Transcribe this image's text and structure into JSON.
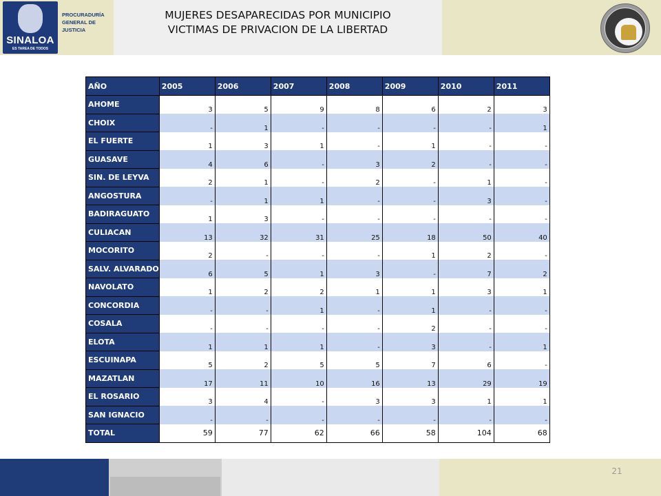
{
  "header": {
    "logo_text": "SINALOA",
    "logo_motto": "ES TAREA DE TODOS",
    "agency_lines": [
      "PROCURADURÍA",
      "GENERAL DE",
      "JUSTICIA"
    ],
    "title_line1": "MUJERES DESAPARECIDAS POR MUNICIPIO",
    "title_line2": "VICTIMAS DE PRIVACION DE LA LIBERTAD"
  },
  "table": {
    "headers": [
      "AÑO",
      "2005",
      "2006",
      "2007",
      "2008",
      "2009",
      "2010",
      "2011"
    ],
    "rows": [
      {
        "name": "AHOME",
        "values": [
          "3",
          "5",
          "9",
          "8",
          "6",
          "2",
          "3"
        ]
      },
      {
        "name": "CHOIX",
        "values": [
          "-",
          "1",
          "-",
          "-",
          "-",
          "-",
          "1"
        ]
      },
      {
        "name": "EL FUERTE",
        "values": [
          "1",
          "3",
          "1",
          "-",
          "1",
          "-",
          "-"
        ]
      },
      {
        "name": "GUASAVE",
        "values": [
          "4",
          "6",
          "-",
          "3",
          "2",
          "-",
          "-"
        ]
      },
      {
        "name": "SIN. DE LEYVA",
        "values": [
          "2",
          "1",
          "-",
          "2",
          "-",
          "1",
          "-"
        ]
      },
      {
        "name": "ANGOSTURA",
        "values": [
          "-",
          "1",
          "1",
          "-",
          "-",
          "3",
          "-"
        ]
      },
      {
        "name": "BADIRAGUATO",
        "values": [
          "1",
          "3",
          "-",
          "-",
          "-",
          "-",
          "-"
        ]
      },
      {
        "name": "CULIACAN",
        "values": [
          "13",
          "32",
          "31",
          "25",
          "18",
          "50",
          "40"
        ]
      },
      {
        "name": "MOCORITO",
        "values": [
          "2",
          "-",
          "-",
          "-",
          "1",
          "2",
          "-"
        ]
      },
      {
        "name": "SALV. ALVARADO",
        "values": [
          "6",
          "5",
          "1",
          "3",
          "-",
          "7",
          "2"
        ]
      },
      {
        "name": "NAVOLATO",
        "values": [
          "1",
          "2",
          "2",
          "1",
          "1",
          "3",
          "1"
        ]
      },
      {
        "name": "CONCORDIA",
        "values": [
          "-",
          "-",
          "1",
          "-",
          "1",
          "-",
          "-"
        ]
      },
      {
        "name": "COSALA",
        "values": [
          "-",
          "-",
          "-",
          "-",
          "2",
          "-",
          "-"
        ]
      },
      {
        "name": "ELOTA",
        "values": [
          "1",
          "1",
          "1",
          "-",
          "3",
          "-",
          "1"
        ]
      },
      {
        "name": "ESCUINAPA",
        "values": [
          "5",
          "2",
          "5",
          "5",
          "7",
          "6",
          "-"
        ]
      },
      {
        "name": "MAZATLAN",
        "values": [
          "17",
          "11",
          "10",
          "16",
          "13",
          "29",
          "19"
        ]
      },
      {
        "name": "EL ROSARIO",
        "values": [
          "3",
          "4",
          "-",
          "3",
          "3",
          "1",
          "1"
        ]
      },
      {
        "name": "SAN IGNACIO",
        "values": [
          "-",
          "-",
          "-",
          "-",
          "-",
          "-",
          "-"
        ]
      }
    ],
    "total": {
      "name": "TOTAL",
      "values": [
        "59",
        "77",
        "62",
        "66",
        "58",
        "104",
        "68"
      ]
    }
  },
  "footer": {
    "page_number": "21"
  },
  "colors": {
    "navy": "#203c78",
    "light_blue": "#c9d8f0",
    "khaki": "#e8e6c4"
  }
}
